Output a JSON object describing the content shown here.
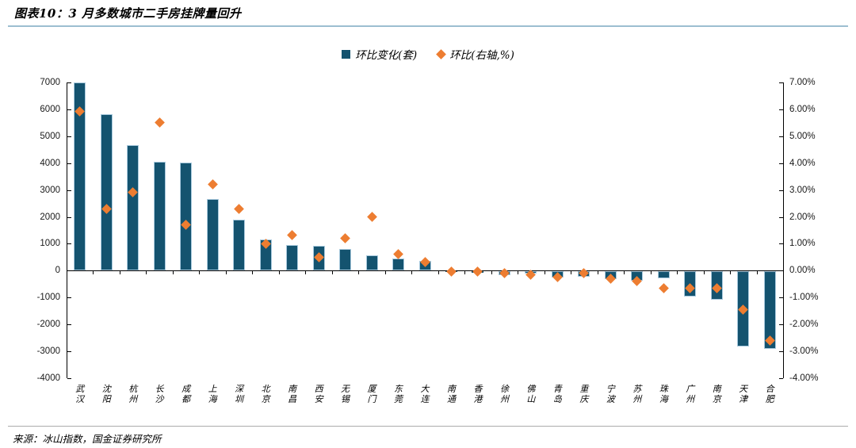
{
  "header": {
    "title": "图表10：3 月多数城市二手房挂牌量回升"
  },
  "legend": {
    "items": [
      {
        "label": "环比变化(套)",
        "marker": "square",
        "color": "#14536f"
      },
      {
        "label": "环比(右轴,%)",
        "marker": "diamond",
        "color": "#ed7d31"
      }
    ]
  },
  "chart_data": {
    "type": "bar",
    "title": "图表10：3 月多数城市二手房挂牌量回升",
    "categories": [
      "武汉",
      "沈阳",
      "杭州",
      "长沙",
      "成都",
      "上海",
      "深圳",
      "北京",
      "南昌",
      "西安",
      "无锡",
      "厦门",
      "东莞",
      "大连",
      "南通",
      "香港",
      "徐州",
      "佛山",
      "青岛",
      "重庆",
      "宁波",
      "苏州",
      "珠海",
      "广州",
      "南京",
      "天津",
      "合肥"
    ],
    "series": [
      {
        "name": "环比变化(套)",
        "type": "bar",
        "axis": "left",
        "color": "#14536f",
        "values": [
          7000,
          5800,
          4650,
          4050,
          4000,
          2650,
          1900,
          1150,
          950,
          900,
          800,
          550,
          450,
          350,
          -30,
          -50,
          -150,
          -100,
          -250,
          -220,
          -300,
          -350,
          -270,
          -950,
          -1050,
          -2800,
          -2880
        ]
      },
      {
        "name": "环比(右轴,%)",
        "type": "scatter",
        "marker": "diamond",
        "axis": "right",
        "color": "#ed7d31",
        "values": [
          5.9,
          2.3,
          2.9,
          5.5,
          1.7,
          3.2,
          2.3,
          1.0,
          1.3,
          0.5,
          1.2,
          2.0,
          0.6,
          0.3,
          -0.05,
          -0.05,
          -0.1,
          -0.15,
          -0.25,
          -0.1,
          -0.3,
          -0.4,
          -0.65,
          -0.65,
          -0.65,
          -1.45,
          -2.6
        ]
      }
    ],
    "left_axis": {
      "min": -4000,
      "max": 7000,
      "step": 1000,
      "tick_labels": [
        "7000",
        "6000",
        "5000",
        "4000",
        "3000",
        "2000",
        "1000",
        "0",
        "-1000",
        "-2000",
        "-3000",
        "-4000"
      ]
    },
    "right_axis": {
      "min": -4,
      "max": 7,
      "step": 1,
      "tick_labels": [
        "7.00%",
        "6.00%",
        "5.00%",
        "4.00%",
        "3.00%",
        "2.00%",
        "1.00%",
        "0.00%",
        "-1.00%",
        "-2.00%",
        "-3.00%",
        "-4.00%"
      ]
    },
    "grid": false,
    "legend_position": "top-center"
  },
  "footer": {
    "source": "来源：冰山指数，国金证券研究所"
  }
}
